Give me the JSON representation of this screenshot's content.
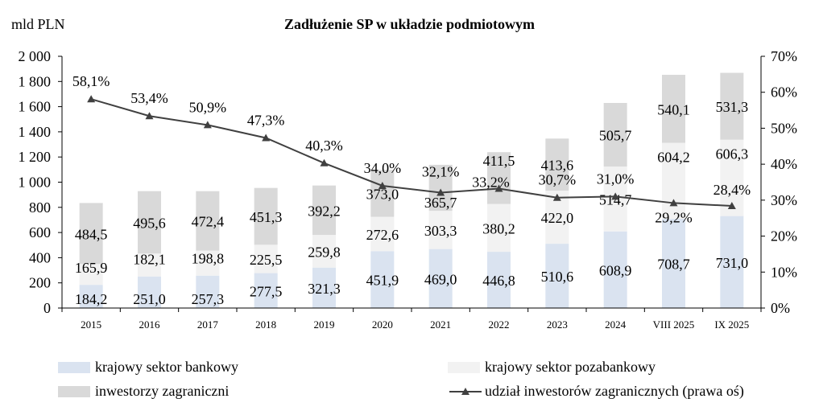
{
  "chart_data": {
    "type": "bar",
    "stacked": true,
    "title": "Zadłużenie SP w układzie podmiotowym",
    "ylabel": "mld PLN",
    "ylim": [
      0,
      2000
    ],
    "y_ticks": [
      "0",
      "200",
      "400",
      "600",
      "800",
      "1 000",
      "1 200",
      "1 400",
      "1 600",
      "1 800",
      "2 000"
    ],
    "y2lim": [
      0,
      70
    ],
    "y2_ticks": [
      "0%",
      "10%",
      "20%",
      "30%",
      "40%",
      "50%",
      "60%",
      "70%"
    ],
    "categories": [
      "2015",
      "2016",
      "2017",
      "2018",
      "2019",
      "2020",
      "2021",
      "2022",
      "2023",
      "2024",
      "VIII 2025",
      "IX 2025"
    ],
    "series": [
      {
        "name": "krajowy sektor bankowy",
        "color": "#dae3f0",
        "values": [
          184.2,
          251.0,
          257.3,
          277.5,
          321.3,
          451.9,
          469.0,
          446.8,
          510.6,
          608.9,
          708.7,
          731.0
        ],
        "labels": [
          "184,2",
          "251,0",
          "257,3",
          "277,5",
          "321,3",
          "451,9",
          "469,0",
          "446,8",
          "510,6",
          "608,9",
          "708,7",
          "731,0"
        ]
      },
      {
        "name": "krajowy sektor pozabankowy",
        "color": "#f2f2f2",
        "values": [
          165.9,
          182.1,
          198.8,
          225.5,
          259.8,
          272.6,
          303.3,
          380.2,
          422.0,
          514.7,
          604.2,
          606.3
        ],
        "labels": [
          "165,9",
          "182,1",
          "198,8",
          "225,5",
          "259,8",
          "272,6",
          "303,3",
          "380,2",
          "422,0",
          "514,7",
          "604,2",
          "606,3"
        ]
      },
      {
        "name": "inwestorzy zagraniczni",
        "color": "#d9d9d9",
        "values": [
          484.5,
          495.6,
          472.4,
          451.3,
          392.2,
          373.0,
          365.7,
          411.5,
          413.6,
          505.7,
          540.1,
          531.3
        ],
        "labels": [
          "484,5",
          "495,6",
          "472,4",
          "451,3",
          "392,2",
          "373,0",
          "365,7",
          "411,5",
          "413,6",
          "505,7",
          "540,1",
          "531,3"
        ]
      },
      {
        "name": "udział inwestorów zagranicznych (prawa oś)",
        "type": "line",
        "axis": "right",
        "color": "#404040",
        "values": [
          58.1,
          53.4,
          50.9,
          47.3,
          40.3,
          34.0,
          32.1,
          33.2,
          30.7,
          31.0,
          29.2,
          28.4
        ],
        "labels": [
          "58,1%",
          "53,4%",
          "50,9%",
          "47,3%",
          "40,3%",
          "34,0%",
          "32,1%",
          "33,2%",
          "30,7%",
          "31,0%",
          "29,2%",
          "28,4%"
        ]
      }
    ],
    "legend_position": "bottom",
    "grid": false
  }
}
